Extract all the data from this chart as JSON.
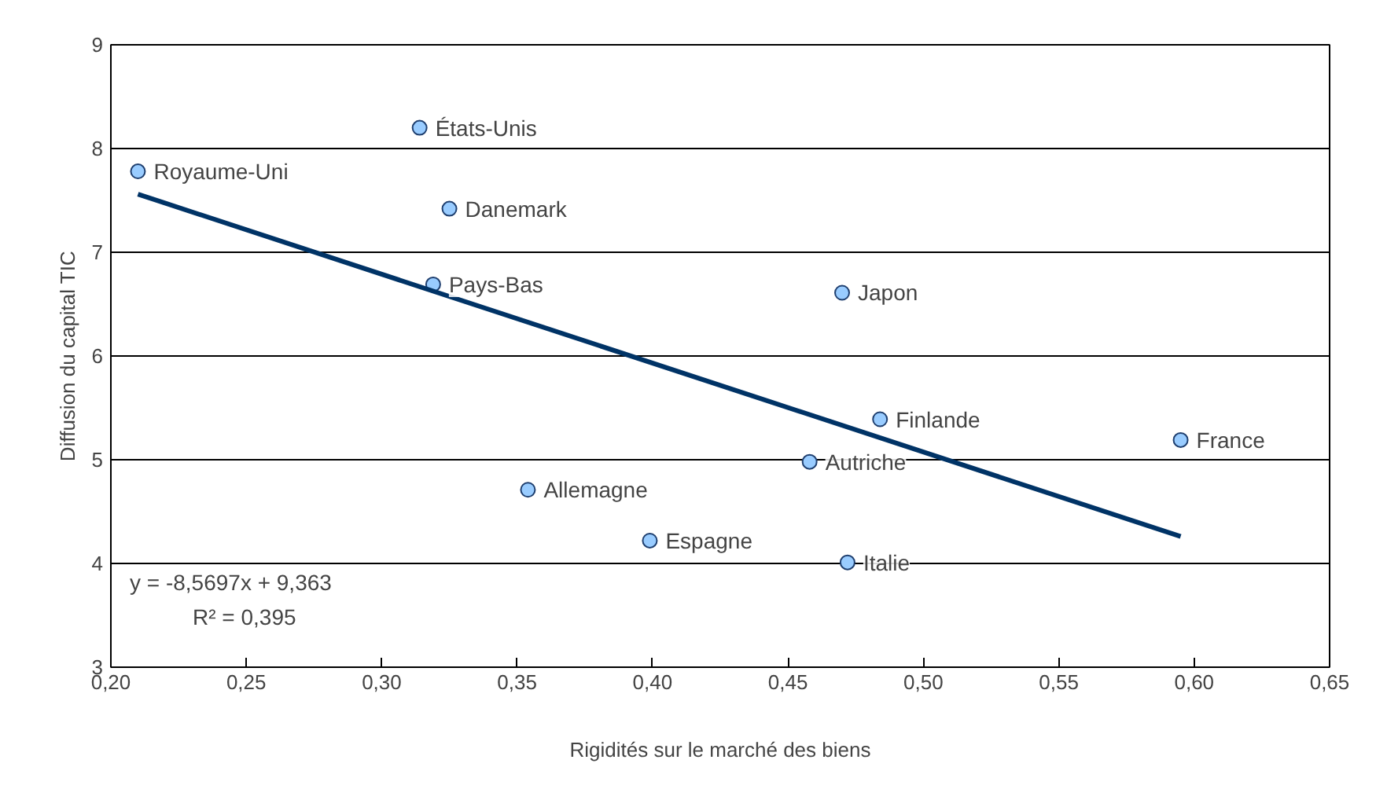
{
  "chart_data": {
    "type": "scatter",
    "xlabel": "Rigidités sur le marché des biens",
    "ylabel": "Diffusion du capital TIC",
    "x": [
      0.21,
      0.314,
      0.325,
      0.319,
      0.354,
      0.399,
      0.458,
      0.47,
      0.484,
      0.472,
      0.595
    ],
    "series": [
      {
        "color": "#99ccff",
        "values": [
          7.78,
          8.2,
          7.42,
          6.69,
          4.71,
          4.22,
          4.98,
          6.61,
          5.39,
          4.01,
          5.19
        ]
      },
      {
        "type": "line",
        "color": "#003366",
        "x": [
          0.21,
          0.595
        ],
        "values": [
          7.56,
          4.26
        ],
        "marker": "none"
      }
    ],
    "xlim": [
      0.2,
      0.65
    ],
    "xticks": [
      {
        "value": 0.2,
        "label": "0,20"
      },
      {
        "value": 0.25,
        "label": "0,25"
      },
      {
        "value": 0.3,
        "label": "0,30"
      },
      {
        "value": 0.35,
        "label": "0,35"
      },
      {
        "value": 0.4,
        "label": "0,40"
      },
      {
        "value": 0.45,
        "label": "0,45"
      },
      {
        "value": 0.5,
        "label": "0,50"
      },
      {
        "value": 0.55,
        "label": "0,55"
      },
      {
        "value": 0.6,
        "label": "0,60"
      },
      {
        "value": 0.65,
        "label": "0,65"
      }
    ],
    "ylim": [
      3,
      9
    ],
    "yticks": [
      3,
      4,
      5,
      6,
      7,
      8,
      9
    ],
    "grid": "y",
    "marker": "circle",
    "annotations": [
      {
        "text": "Royaume-Uni",
        "x": 0.21,
        "y": 7.78
      },
      {
        "text": "États-Unis",
        "x": 0.314,
        "y": 8.2
      },
      {
        "text": "Danemark",
        "x": 0.325,
        "y": 7.42
      },
      {
        "text": "Pays-Bas",
        "x": 0.319,
        "y": 6.69
      },
      {
        "text": "Allemagne",
        "x": 0.354,
        "y": 4.71
      },
      {
        "text": "Espagne",
        "x": 0.399,
        "y": 4.22
      },
      {
        "text": "Autriche",
        "x": 0.458,
        "y": 4.98
      },
      {
        "text": "Japon",
        "x": 0.47,
        "y": 6.61
      },
      {
        "text": "Finlande",
        "x": 0.484,
        "y": 5.39
      },
      {
        "text": "Italie",
        "x": 0.472,
        "y": 4.01
      },
      {
        "text": "France",
        "x": 0.595,
        "y": 5.19
      },
      "y = -8,5697x + 9,363",
      "R² = 0,395"
    ]
  }
}
